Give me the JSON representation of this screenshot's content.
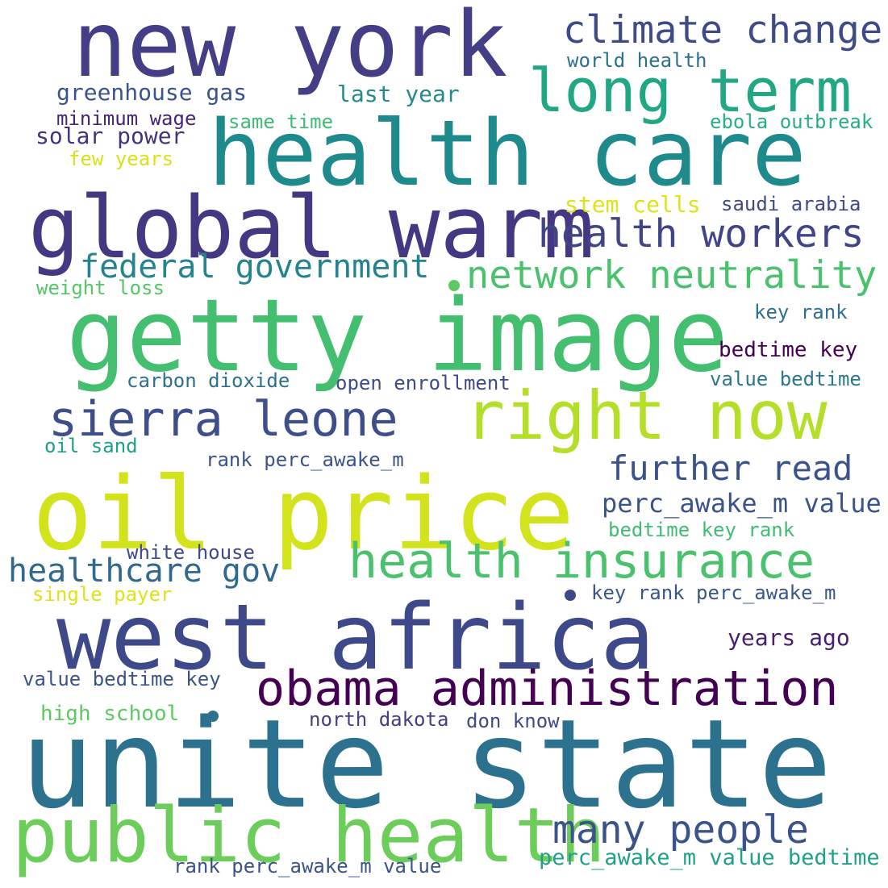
{
  "words": [
    {
      "text": "new york",
      "color": "#433e85"
    },
    {
      "text": "climate change",
      "color": "#3e4a89"
    },
    {
      "text": "long term",
      "color": "#22a785"
    },
    {
      "text": "world health",
      "color": "#2d708e"
    },
    {
      "text": "health care",
      "color": "#1f8a8c"
    },
    {
      "text": "greenhouse gas",
      "color": "#3b528b"
    },
    {
      "text": "last year",
      "color": "#238a8d"
    },
    {
      "text": "minimum wage",
      "color": "#482475"
    },
    {
      "text": "same time",
      "color": "#3fbc73"
    },
    {
      "text": "ebola outbreak",
      "color": "#29af7f"
    },
    {
      "text": "solar power",
      "color": "#46337e"
    },
    {
      "text": "few years",
      "color": "#d8e219"
    },
    {
      "text": "global warm",
      "color": "#453781"
    },
    {
      "text": "stem cells",
      "color": "#dde318"
    },
    {
      "text": "saudi arabia",
      "color": "#3e4a89"
    },
    {
      "text": "health workers",
      "color": "#414487"
    },
    {
      "text": "federal government",
      "color": "#25838e"
    },
    {
      "text": "network neutrality",
      "color": "#4ac16d"
    },
    {
      "text": "weight loss",
      "color": "#55c667"
    },
    {
      "text": "key rank",
      "color": "#2d708e"
    },
    {
      "text": "getty image",
      "color": "#44bf70"
    },
    {
      "text": "bedtime key",
      "color": "#440154"
    },
    {
      "text": "carbon dioxide",
      "color": "#2d708e"
    },
    {
      "text": "open enrollment",
      "color": "#3e4a89"
    },
    {
      "text": "value bedtime",
      "color": "#2a788e"
    },
    {
      "text": "sierra leone",
      "color": "#3d4e8a"
    },
    {
      "text": "right now",
      "color": "#b5de2b"
    },
    {
      "text": "oil sand",
      "color": "#1fa088"
    },
    {
      "text": "rank perc_awake_m",
      "color": "#3b528b"
    },
    {
      "text": "further read",
      "color": "#3b528b"
    },
    {
      "text": "oil price",
      "color": "#d2e21b"
    },
    {
      "text": "perc_awake_m value",
      "color": "#3b528b"
    },
    {
      "text": "bedtime key rank",
      "color": "#3fbc73"
    },
    {
      "text": "health insurance",
      "color": "#4ac16d"
    },
    {
      "text": "white house",
      "color": "#3e4a89"
    },
    {
      "text": "healthcare gov",
      "color": "#31688e"
    },
    {
      "text": "single payer",
      "color": "#dde318"
    },
    {
      "text": "key rank perc_awake_m",
      "color": "#39568c"
    },
    {
      "text": "west africa",
      "color": "#3e4989"
    },
    {
      "text": "years ago",
      "color": "#481f70"
    },
    {
      "text": "value bedtime key",
      "color": "#3b528b"
    },
    {
      "text": "obama administration",
      "color": "#440154"
    },
    {
      "text": "high school",
      "color": "#5ec962"
    },
    {
      "text": "north dakota",
      "color": "#433e85"
    },
    {
      "text": "don know",
      "color": "#3e4a89"
    },
    {
      "text": "unite state",
      "color": "#2c728e"
    },
    {
      "text": "public health",
      "color": "#6ccd5a"
    },
    {
      "text": "many people",
      "color": "#3b528b"
    },
    {
      "text": "perc_awake_m value bedtime",
      "color": "#1fa088"
    },
    {
      "text": "rank perc_awake_m value",
      "color": "#3b528b"
    }
  ],
  "dot_colors": [
    "#5ec962",
    "#3e4989",
    "#2c728e"
  ]
}
